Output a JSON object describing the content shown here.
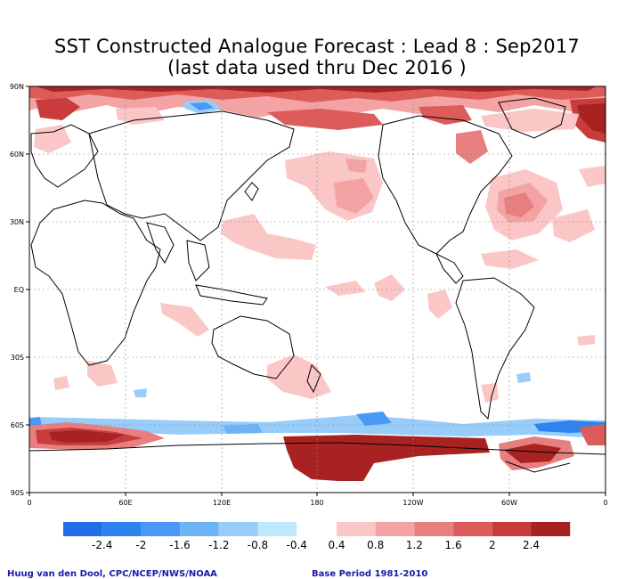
{
  "title_line1": "SST Constructed Analogue Forecast : Lead 8 : Sep2017",
  "title_line2": "(last data used thru Dec 2016 )",
  "lat_labels": [
    "90N",
    "60N",
    "30N",
    "EQ",
    "30S",
    "60S",
    "90S"
  ],
  "lon_labels": [
    "0",
    "60E",
    "120E",
    "180",
    "120W",
    "60W",
    "0"
  ],
  "legend": {
    "negative": [
      {
        "color": "#1f6ee8",
        "label": "-2.4"
      },
      {
        "color": "#2d82f0",
        "label": "-2"
      },
      {
        "color": "#4a98f5",
        "label": "-1.6"
      },
      {
        "color": "#6fb3f7",
        "label": "-1.2"
      },
      {
        "color": "#98cdfa",
        "label": "-0.8"
      },
      {
        "color": "#bfeafd",
        "label": "-0.4"
      }
    ],
    "positive": [
      {
        "color": "#fbc6c6",
        "label": "0.4"
      },
      {
        "color": "#f3a3a3",
        "label": "0.8"
      },
      {
        "color": "#e77f7f",
        "label": "1.2"
      },
      {
        "color": "#dc5c5c",
        "label": "1.6"
      },
      {
        "color": "#c83c3c",
        "label": "2"
      },
      {
        "color": "#a82222",
        "label": "2.4"
      }
    ]
  },
  "credit_left": "Huug van den Dool, CPC/NCEP/NWS/NOAA",
  "credit_right": "Base Period 1981-2010"
}
